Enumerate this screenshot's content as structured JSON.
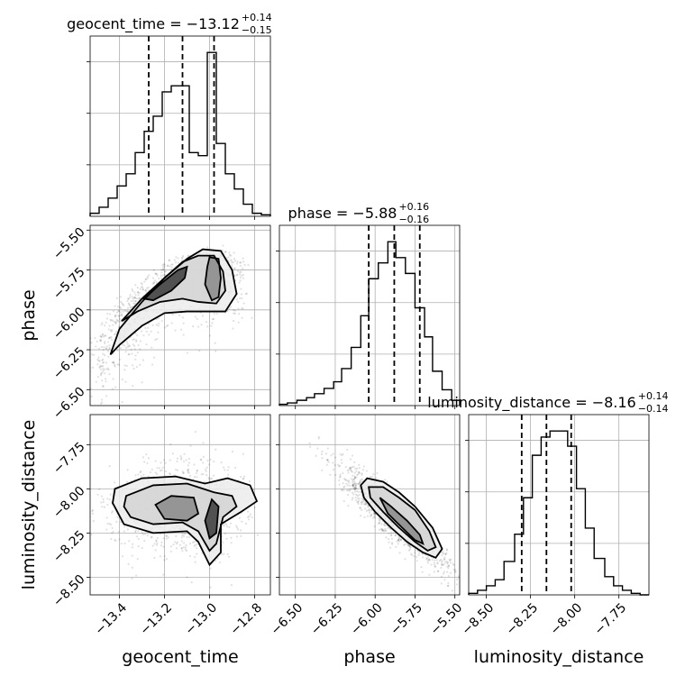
{
  "chart_data": {
    "type": "corner",
    "parameters": [
      "geocent_time",
      "phase",
      "luminosity_distance"
    ],
    "axis_labels": [
      "geocent_time",
      "phase",
      "luminosity_distance"
    ],
    "ranges": [
      [
        -13.53,
        -12.73
      ],
      [
        -6.6,
        -5.47
      ],
      [
        -8.6,
        -7.58
      ]
    ],
    "ticks": [
      {
        "values": [
          -13.4,
          -13.2,
          -13.0,
          -12.8
        ],
        "labels": [
          "−13.4",
          "−13.2",
          "−13.0",
          "−12.8"
        ]
      },
      {
        "values": [
          -6.5,
          -6.25,
          -6.0,
          -5.75,
          -5.5
        ],
        "labels": [
          "−6.50",
          "−6.25",
          "−6.00",
          "−5.75",
          "−5.50"
        ]
      },
      {
        "values": [
          -8.5,
          -8.25,
          -8.0,
          -7.75
        ],
        "labels": [
          "−8.50",
          "−8.25",
          "−8.00",
          "−7.75"
        ]
      }
    ],
    "grid": true,
    "titles": [
      {
        "name": "geocent_time",
        "median": "−13.12",
        "plus": "+0.14",
        "minus": "−0.15"
      },
      {
        "name": "phase",
        "median": "−5.88",
        "plus": "+0.16",
        "minus": "−0.16"
      },
      {
        "name": "luminosity_distance",
        "median": "−8.16",
        "plus": "+0.14",
        "minus": "−0.14"
      }
    ],
    "quantiles": [
      [
        -13.27,
        -13.12,
        -12.98
      ],
      [
        -6.04,
        -5.88,
        -5.72
      ],
      [
        -8.3,
        -8.16,
        -8.02
      ]
    ],
    "histograms": [
      {
        "bin_edges": [
          -13.53,
          -13.49,
          -13.45,
          -13.41,
          -13.37,
          -13.33,
          -13.29,
          -13.25,
          -13.21,
          -13.17,
          -13.13,
          -13.09,
          -13.05,
          -13.01,
          -12.97,
          -12.93,
          -12.89,
          -12.85,
          -12.81,
          -12.77,
          -12.73
        ],
        "counts": [
          2,
          6,
          12,
          20,
          28,
          42,
          56,
          66,
          82,
          86,
          86,
          42,
          40,
          108,
          48,
          28,
          18,
          8,
          2,
          1
        ]
      },
      {
        "bin_edges": [
          -6.6,
          -6.55,
          -6.49,
          -6.43,
          -6.38,
          -6.32,
          -6.26,
          -6.21,
          -6.15,
          -6.09,
          -6.04,
          -5.98,
          -5.92,
          -5.87,
          -5.81,
          -5.75,
          -5.69,
          -5.64,
          -5.58,
          -5.52,
          -5.47
        ],
        "counts": [
          1,
          2,
          4,
          6,
          9,
          13,
          18,
          28,
          44,
          68,
          96,
          108,
          124,
          112,
          100,
          74,
          52,
          26,
          12,
          4
        ]
      },
      {
        "bin_edges": [
          -8.6,
          -8.55,
          -8.5,
          -8.45,
          -8.4,
          -8.34,
          -8.29,
          -8.24,
          -8.19,
          -8.14,
          -8.09,
          -8.04,
          -7.99,
          -7.94,
          -7.89,
          -7.83,
          -7.78,
          -7.73,
          -7.68,
          -7.63,
          -7.58
        ],
        "counts": [
          1,
          3,
          6,
          10,
          22,
          40,
          64,
          92,
          104,
          108,
          108,
          98,
          70,
          44,
          24,
          12,
          6,
          3,
          1,
          0
        ]
      }
    ],
    "pairs": [
      {
        "x": "geocent_time",
        "y": "phase",
        "contours": [
          [
            [
              -13.44,
              -6.28
            ],
            [
              -13.4,
              -6.12
            ],
            [
              -13.3,
              -5.95
            ],
            [
              -13.2,
              -5.8
            ],
            [
              -13.1,
              -5.68
            ],
            [
              -13.03,
              -5.62
            ],
            [
              -12.95,
              -5.63
            ],
            [
              -12.9,
              -5.75
            ],
            [
              -12.88,
              -5.9
            ],
            [
              -12.93,
              -6.01
            ],
            [
              -13.0,
              -6.01
            ],
            [
              -13.1,
              -6.01
            ],
            [
              -13.2,
              -6.02
            ],
            [
              -13.3,
              -6.1
            ],
            [
              -13.4,
              -6.22
            ],
            [
              -13.44,
              -6.28
            ]
          ],
          [
            [
              -13.39,
              -6.07
            ],
            [
              -13.3,
              -5.93
            ],
            [
              -13.2,
              -5.8
            ],
            [
              -13.12,
              -5.7
            ],
            [
              -13.05,
              -5.66
            ],
            [
              -12.98,
              -5.66
            ],
            [
              -12.94,
              -5.76
            ],
            [
              -12.93,
              -5.88
            ],
            [
              -12.97,
              -5.96
            ],
            [
              -13.05,
              -5.95
            ],
            [
              -13.12,
              -5.93
            ],
            [
              -13.22,
              -5.95
            ],
            [
              -13.32,
              -6.01
            ],
            [
              -13.39,
              -6.07
            ]
          ],
          [
            [
              -13.0,
              -5.67
            ],
            [
              -12.96,
              -5.68
            ],
            [
              -12.95,
              -5.8
            ],
            [
              -12.96,
              -5.92
            ],
            [
              -12.99,
              -5.94
            ],
            [
              -13.02,
              -5.84
            ],
            [
              -13.01,
              -5.73
            ],
            [
              -13.0,
              -5.67
            ]
          ],
          [
            [
              -13.29,
              -5.93
            ],
            [
              -13.22,
              -5.84
            ],
            [
              -13.14,
              -5.75
            ],
            [
              -13.1,
              -5.73
            ],
            [
              -13.11,
              -5.8
            ],
            [
              -13.17,
              -5.88
            ],
            [
              -13.25,
              -5.94
            ],
            [
              -13.29,
              -5.93
            ]
          ]
        ]
      },
      {
        "x": "geocent_time",
        "y": "luminosity_distance",
        "contours": [
          [
            [
              -13.42,
              -8.0
            ],
            [
              -13.3,
              -7.94
            ],
            [
              -13.15,
              -7.93
            ],
            [
              -13.02,
              -7.97
            ],
            [
              -12.92,
              -7.94
            ],
            [
              -12.82,
              -7.98
            ],
            [
              -12.79,
              -8.07
            ],
            [
              -12.86,
              -8.13
            ],
            [
              -12.95,
              -8.2
            ],
            [
              -12.95,
              -8.36
            ],
            [
              -13.0,
              -8.43
            ],
            [
              -13.05,
              -8.3
            ],
            [
              -13.1,
              -8.24
            ],
            [
              -13.25,
              -8.25
            ],
            [
              -13.38,
              -8.2
            ],
            [
              -13.43,
              -8.08
            ],
            [
              -13.42,
              -8.0
            ]
          ],
          [
            [
              -13.37,
              -8.04
            ],
            [
              -13.25,
              -7.98
            ],
            [
              -13.1,
              -7.97
            ],
            [
              -12.98,
              -8.02
            ],
            [
              -12.9,
              -8.04
            ],
            [
              -12.88,
              -8.1
            ],
            [
              -12.94,
              -8.16
            ],
            [
              -12.97,
              -8.31
            ],
            [
              -13.0,
              -8.35
            ],
            [
              -13.05,
              -8.24
            ],
            [
              -13.12,
              -8.19
            ],
            [
              -13.25,
              -8.2
            ],
            [
              -13.35,
              -8.16
            ],
            [
              -13.38,
              -8.1
            ],
            [
              -13.37,
              -8.04
            ]
          ],
          [
            [
              -13.24,
              -8.09
            ],
            [
              -13.17,
              -8.04
            ],
            [
              -13.07,
              -8.05
            ],
            [
              -13.05,
              -8.14
            ],
            [
              -13.1,
              -8.18
            ],
            [
              -13.2,
              -8.17
            ],
            [
              -13.24,
              -8.09
            ]
          ],
          [
            [
              -12.99,
              -8.06
            ],
            [
              -12.96,
              -8.1
            ],
            [
              -12.97,
              -8.25
            ],
            [
              -13.0,
              -8.28
            ],
            [
              -13.02,
              -8.18
            ],
            [
              -12.99,
              -8.06
            ]
          ]
        ]
      },
      {
        "x": "phase",
        "y": "luminosity_distance",
        "contours": [
          [
            [
              -6.09,
              -7.98
            ],
            [
              -6.05,
              -7.94
            ],
            [
              -5.95,
              -7.96
            ],
            [
              -5.85,
              -8.02
            ],
            [
              -5.75,
              -8.1
            ],
            [
              -5.64,
              -8.22
            ],
            [
              -5.58,
              -8.34
            ],
            [
              -5.62,
              -8.39
            ],
            [
              -5.7,
              -8.36
            ],
            [
              -5.8,
              -8.3
            ],
            [
              -5.9,
              -8.22
            ],
            [
              -6.0,
              -8.13
            ],
            [
              -6.07,
              -8.05
            ],
            [
              -6.09,
              -7.98
            ]
          ],
          [
            [
              -6.04,
              -7.99
            ],
            [
              -5.95,
              -7.99
            ],
            [
              -5.85,
              -8.05
            ],
            [
              -5.75,
              -8.12
            ],
            [
              -5.66,
              -8.24
            ],
            [
              -5.62,
              -8.33
            ],
            [
              -5.67,
              -8.35
            ],
            [
              -5.75,
              -8.3
            ],
            [
              -5.85,
              -8.22
            ],
            [
              -5.95,
              -8.13
            ],
            [
              -6.03,
              -8.05
            ],
            [
              -6.04,
              -7.99
            ]
          ],
          [
            [
              -5.97,
              -8.05
            ],
            [
              -5.9,
              -8.1
            ],
            [
              -5.8,
              -8.18
            ],
            [
              -5.72,
              -8.26
            ],
            [
              -5.7,
              -8.31
            ],
            [
              -5.75,
              -8.29
            ],
            [
              -5.83,
              -8.22
            ],
            [
              -5.92,
              -8.14
            ],
            [
              -5.97,
              -8.05
            ]
          ]
        ]
      }
    ]
  }
}
